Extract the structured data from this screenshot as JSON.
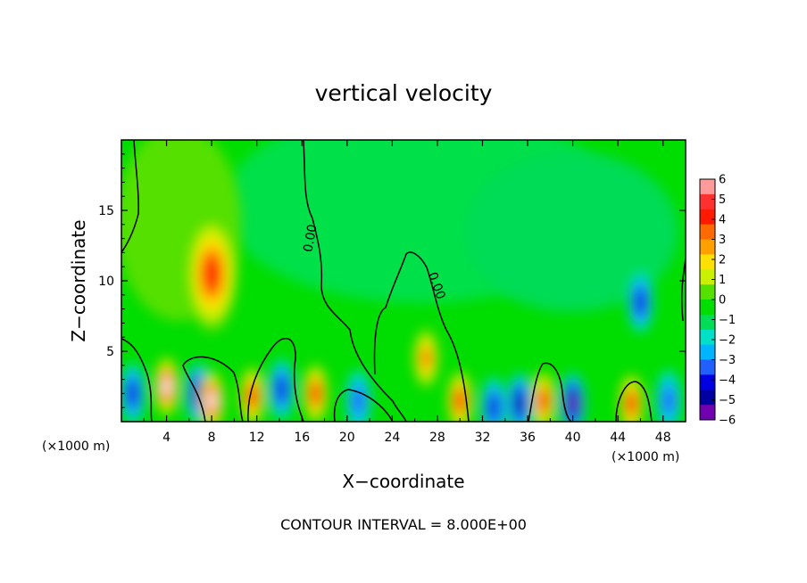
{
  "chart_data": {
    "type": "heatmap",
    "title": "vertical velocity",
    "xlabel": "X−coordinate",
    "ylabel": "Z−coordinate",
    "x_unit": "(×1000 m)",
    "x_unit_right": "(×1000 m)",
    "xlim": [
      0,
      50
    ],
    "ylim": [
      0,
      20
    ],
    "x_ticks": [
      4,
      8,
      12,
      16,
      20,
      24,
      28,
      32,
      36,
      40,
      44,
      48
    ],
    "x_tick_labels": [
      "4",
      "8",
      "12",
      "16",
      "20",
      "24",
      "28",
      "32",
      "36",
      "40",
      "44",
      "48"
    ],
    "y_ticks": [
      5,
      10,
      15
    ],
    "y_tick_labels": [
      "5",
      "10",
      "15"
    ],
    "colorbar": {
      "levels": [
        6,
        5,
        4,
        3,
        2,
        1,
        0,
        -1,
        -2,
        -3,
        -4,
        -5,
        -6
      ],
      "labels": [
        "6",
        "5",
        "4",
        "3",
        "2",
        "1",
        "0",
        "−1",
        "−2",
        "−3",
        "−4",
        "−5",
        "−6"
      ],
      "colors": [
        "#ff9a9a",
        "#ff3030",
        "#ff1a00",
        "#ff6a00",
        "#ffa000",
        "#ffe000",
        "#c8f000",
        "#55e000",
        "#00dd00",
        "#00dc55",
        "#00e0c8",
        "#00b4ff",
        "#2060ff",
        "#0000e0",
        "#0000a0",
        "#7000b0"
      ]
    },
    "contour_labels": [
      "0.00",
      "0.00"
    ],
    "contour_interval_text": "CONTOUR INTERVAL = 8.000E+00",
    "features": [
      {
        "x": 8.0,
        "z": 10.5,
        "w": 4.5,
        "kind": "updraft"
      },
      {
        "x": 27.0,
        "z": 4.5,
        "w": 3.5,
        "kind": "updraft"
      },
      {
        "x": 46.0,
        "z": 8.5,
        "w": -3.5,
        "kind": "downdraft"
      },
      {
        "x": 4.0,
        "z": 2.5,
        "w": 6.0,
        "kind": "updraft"
      },
      {
        "x": 1.0,
        "z": 2.0,
        "w": -4.0,
        "kind": "downdraft"
      },
      {
        "x": 6.8,
        "z": 2.0,
        "w": -4.5,
        "kind": "downdraft"
      },
      {
        "x": 8.0,
        "z": 1.5,
        "w": 5.5,
        "kind": "updraft"
      },
      {
        "x": 11.6,
        "z": 1.8,
        "w": 5.0,
        "kind": "updraft"
      },
      {
        "x": 14.2,
        "z": 2.3,
        "w": -4.0,
        "kind": "downdraft"
      },
      {
        "x": 17.2,
        "z": 2.0,
        "w": 4.5,
        "kind": "updraft"
      },
      {
        "x": 21.0,
        "z": 1.5,
        "w": -3.0,
        "kind": "downdraft"
      },
      {
        "x": 30.0,
        "z": 1.5,
        "w": 4.5,
        "kind": "updraft"
      },
      {
        "x": 33.0,
        "z": 1.0,
        "w": -4.0,
        "kind": "downdraft"
      },
      {
        "x": 35.3,
        "z": 1.3,
        "w": -5.0,
        "kind": "downdraft"
      },
      {
        "x": 37.4,
        "z": 1.5,
        "w": 5.0,
        "kind": "updraft"
      },
      {
        "x": 40.0,
        "z": 1.3,
        "w": -5.5,
        "kind": "downdraft"
      },
      {
        "x": 45.2,
        "z": 1.3,
        "w": 5.0,
        "kind": "updraft"
      },
      {
        "x": 48.5,
        "z": 1.5,
        "w": -3.0,
        "kind": "downdraft"
      }
    ]
  }
}
